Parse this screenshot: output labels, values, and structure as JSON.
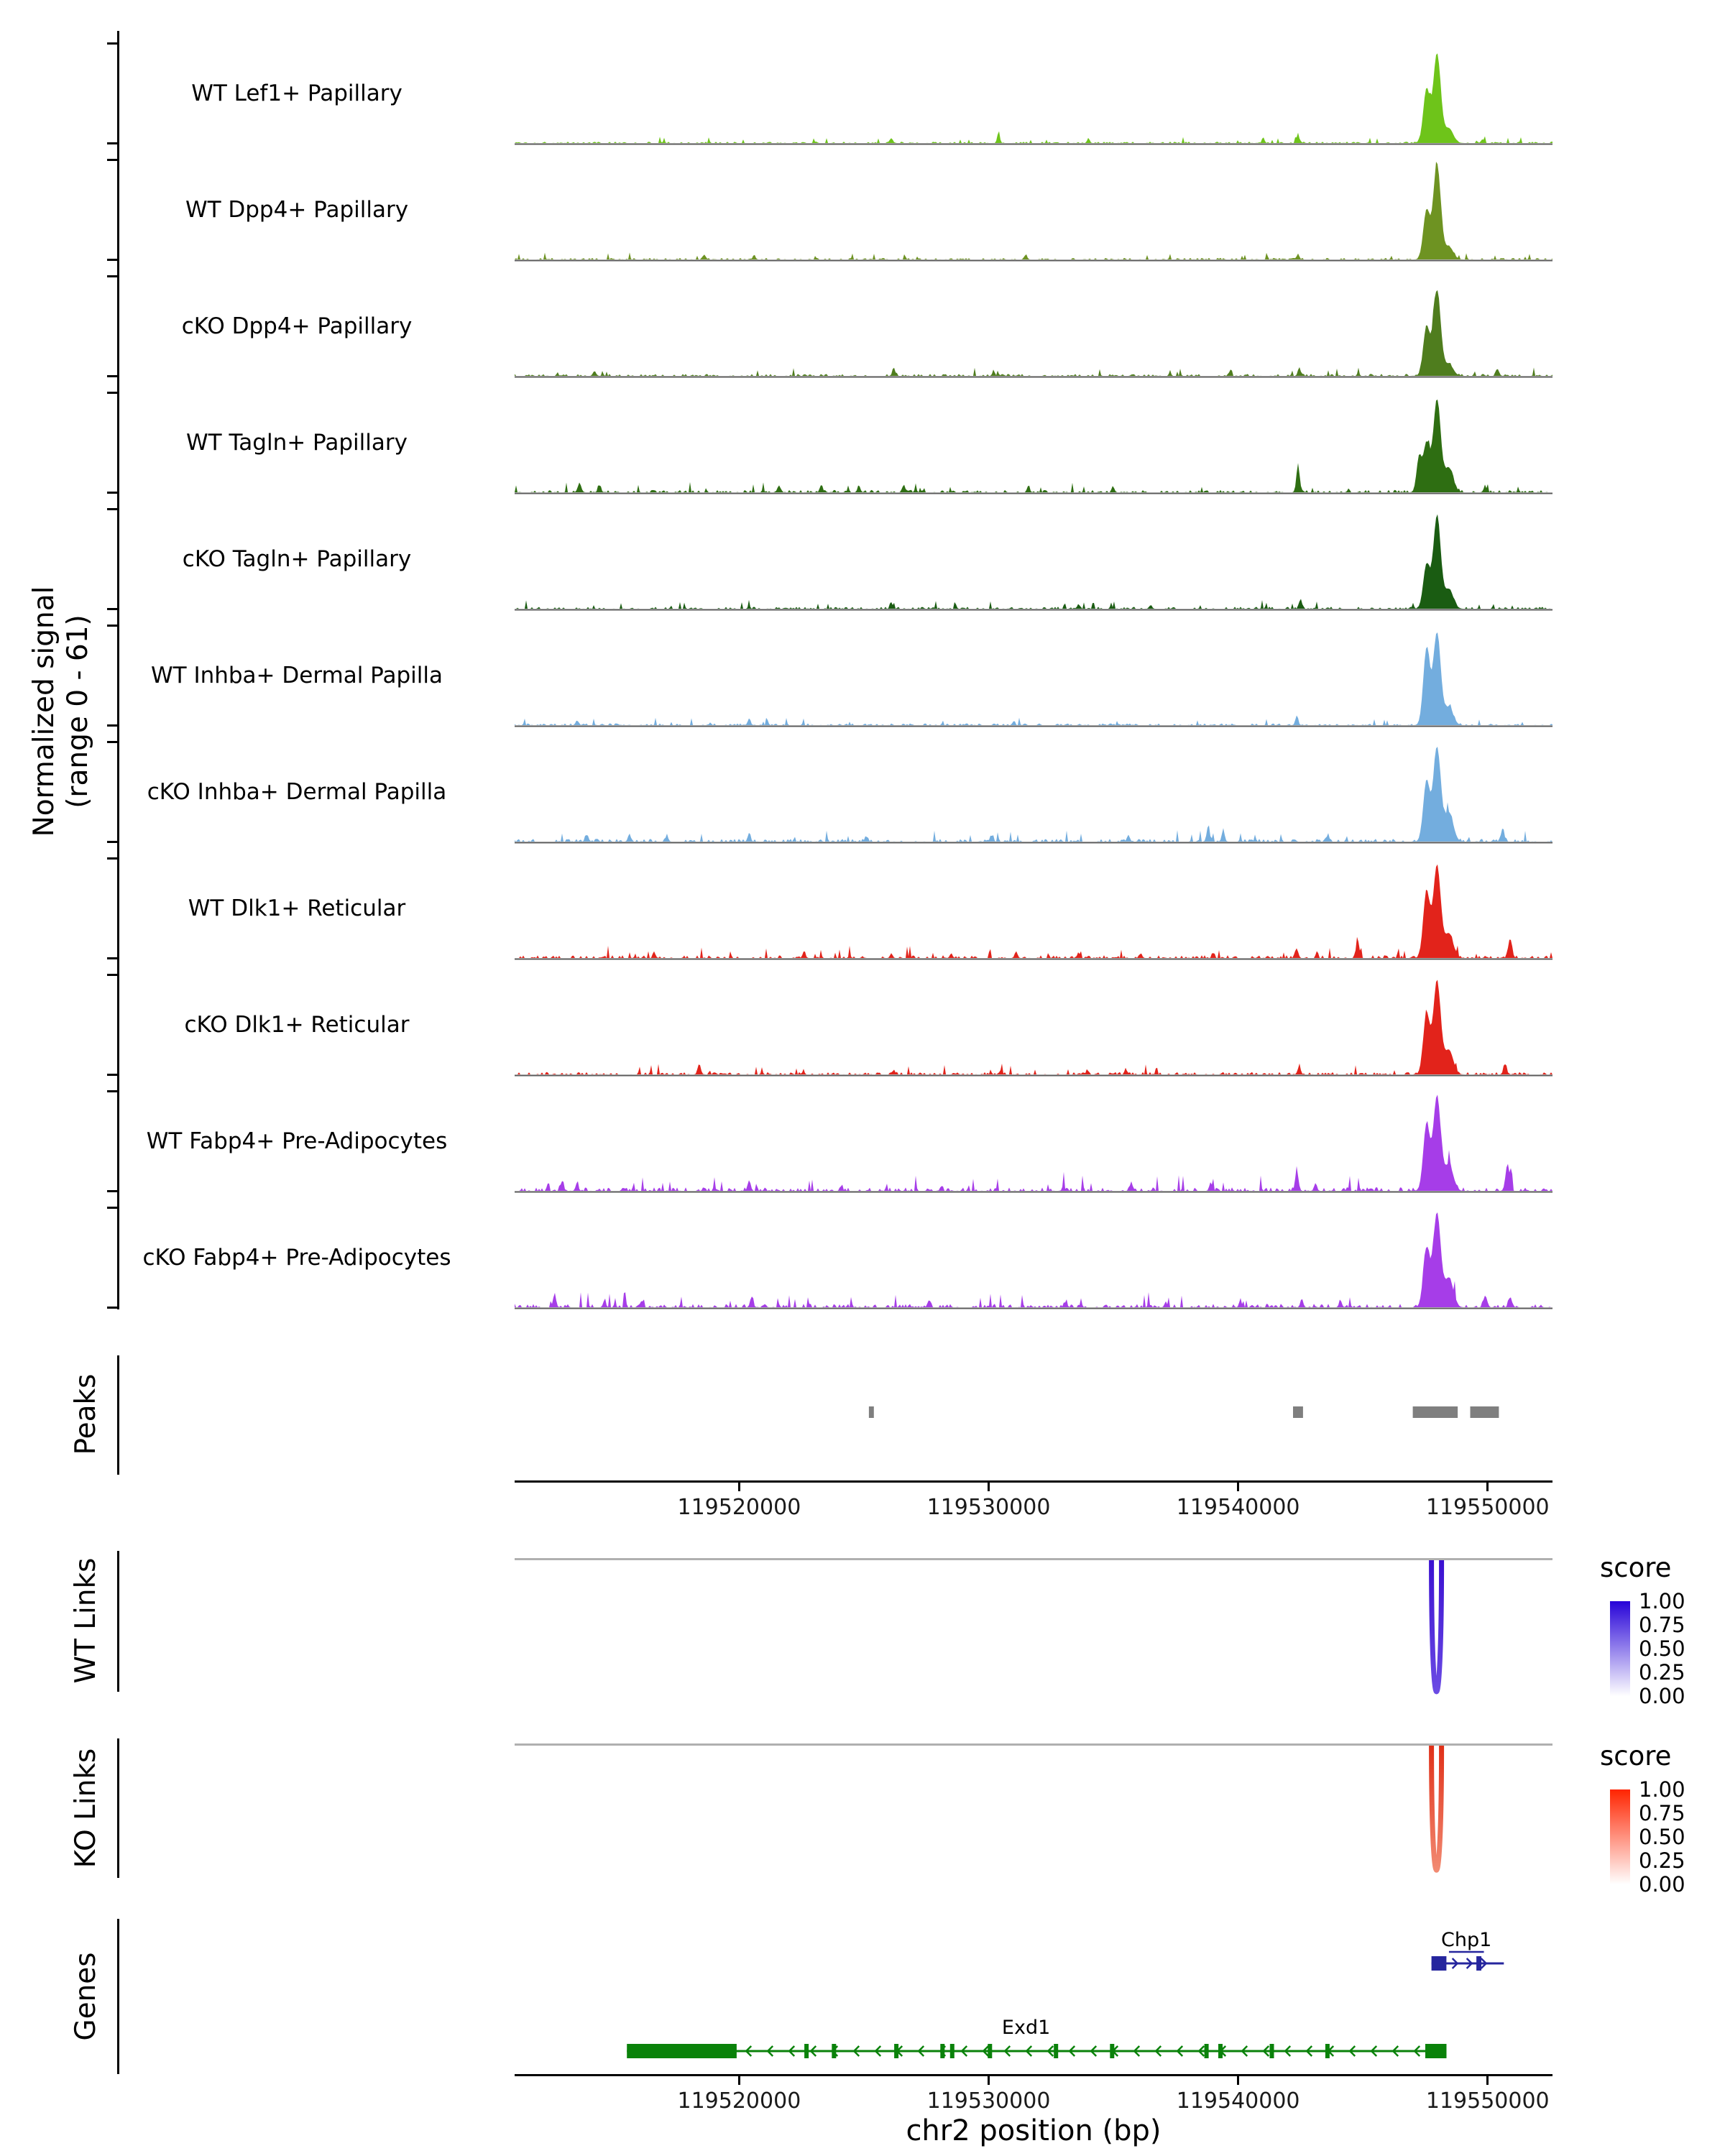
{
  "chart_data": {
    "type": "area",
    "title": "",
    "xlabel": "chr2 position (bp)",
    "ylabel": "Normalized signal (range 0 - 61)",
    "ylabel_lines": [
      "Normalized signal",
      "(range 0 - 61)"
    ],
    "region": {
      "chrom": "chr2",
      "start": 119511000,
      "end": 119552600
    },
    "x_ticks": [
      119520000,
      119530000,
      119540000,
      119550000
    ],
    "signal_range": "0 - 61",
    "tracks": [
      {
        "label": "WT Lef1+ Papillary",
        "color": "#6EC41A",
        "noise": 0.018,
        "peaks": [
          [
            119547550,
            0.55,
            130
          ],
          [
            119547970,
            0.92,
            150
          ],
          [
            119548450,
            0.15,
            170
          ],
          [
            119526100,
            0.05,
            60
          ],
          [
            119530400,
            0.13,
            45
          ],
          [
            119534000,
            0.05,
            50
          ],
          [
            119541000,
            0.05,
            45
          ],
          [
            119542400,
            0.08,
            55
          ],
          [
            119549800,
            0.04,
            60
          ]
        ]
      },
      {
        "label": "WT Dpp4+ Papillary",
        "color": "#6E9322",
        "noise": 0.02,
        "peaks": [
          [
            119547550,
            0.5,
            130
          ],
          [
            119547970,
            0.98,
            150
          ],
          [
            119548450,
            0.13,
            170
          ],
          [
            119518600,
            0.05,
            60
          ],
          [
            119520600,
            0.05,
            50
          ],
          [
            119531500,
            0.04,
            50
          ],
          [
            119542400,
            0.06,
            50
          ]
        ]
      },
      {
        "label": "cKO Dpp4+ Papillary",
        "color": "#4F7D1E",
        "noise": 0.025,
        "peaks": [
          [
            119547550,
            0.5,
            130
          ],
          [
            119547970,
            0.88,
            150
          ],
          [
            119548450,
            0.12,
            170
          ],
          [
            119514200,
            0.05,
            60
          ],
          [
            119526200,
            0.07,
            60
          ],
          [
            119530200,
            0.05,
            50
          ],
          [
            119542450,
            0.09,
            55
          ],
          [
            119550400,
            0.07,
            60
          ]
        ]
      },
      {
        "label": "WT Tagln+ Papillary",
        "color": "#2E6E12",
        "noise": 0.03,
        "peaks": [
          [
            119547250,
            0.35,
            100
          ],
          [
            119547550,
            0.5,
            130
          ],
          [
            119547970,
            0.95,
            150
          ],
          [
            119548450,
            0.25,
            170
          ],
          [
            119513600,
            0.09,
            70
          ],
          [
            119514400,
            0.07,
            60
          ],
          [
            119521600,
            0.06,
            55
          ],
          [
            119523300,
            0.06,
            50
          ],
          [
            119524800,
            0.07,
            55
          ],
          [
            119526600,
            0.08,
            55
          ],
          [
            119531600,
            0.06,
            50
          ],
          [
            119535000,
            0.05,
            50
          ],
          [
            119542400,
            0.3,
            60
          ],
          [
            119549900,
            0.06,
            60
          ]
        ]
      },
      {
        "label": "cKO Tagln+ Papillary",
        "color": "#1A5C12",
        "noise": 0.025,
        "peaks": [
          [
            119547550,
            0.45,
            130
          ],
          [
            119547970,
            0.95,
            150
          ],
          [
            119548450,
            0.2,
            170
          ],
          [
            119526100,
            0.06,
            55
          ],
          [
            119533600,
            0.05,
            50
          ],
          [
            119536500,
            0.04,
            50
          ],
          [
            119542500,
            0.1,
            55
          ]
        ]
      },
      {
        "label": "WT Inhba+ Dermal Papilla",
        "color": "#73ADDE",
        "noise": 0.022,
        "peaks": [
          [
            119547550,
            0.78,
            130
          ],
          [
            119547970,
            0.95,
            150
          ],
          [
            119548450,
            0.18,
            170
          ],
          [
            119513500,
            0.05,
            55
          ],
          [
            119520400,
            0.07,
            55
          ],
          [
            119531000,
            0.04,
            50
          ],
          [
            119542350,
            0.1,
            55
          ]
        ]
      },
      {
        "label": "cKO Inhba+ Dermal Papilla",
        "color": "#73ADDE",
        "noise": 0.035,
        "peaks": [
          [
            119547550,
            0.62,
            130
          ],
          [
            119547970,
            0.97,
            150
          ],
          [
            119548450,
            0.3,
            170
          ],
          [
            119513900,
            0.07,
            60
          ],
          [
            119515600,
            0.08,
            55
          ],
          [
            119517100,
            0.06,
            55
          ],
          [
            119520400,
            0.09,
            55
          ],
          [
            119525100,
            0.05,
            50
          ],
          [
            119530100,
            0.07,
            50
          ],
          [
            119535600,
            0.07,
            55
          ],
          [
            119538800,
            0.16,
            60
          ],
          [
            119539400,
            0.12,
            55
          ],
          [
            119543600,
            0.07,
            55
          ],
          [
            119550600,
            0.12,
            70
          ]
        ]
      },
      {
        "label": "WT Dlk1+ Reticular",
        "color": "#E2231B",
        "noise": 0.035,
        "peaks": [
          [
            119547550,
            0.68,
            130
          ],
          [
            119547970,
            0.95,
            150
          ],
          [
            119548450,
            0.25,
            170
          ],
          [
            119516600,
            0.05,
            55
          ],
          [
            119522600,
            0.07,
            55
          ],
          [
            119526100,
            0.05,
            50
          ],
          [
            119528500,
            0.05,
            50
          ],
          [
            119531100,
            0.07,
            55
          ],
          [
            119533600,
            0.06,
            50
          ],
          [
            119536100,
            0.05,
            50
          ],
          [
            119539000,
            0.05,
            50
          ],
          [
            119542350,
            0.1,
            55
          ],
          [
            119544800,
            0.16,
            65
          ],
          [
            119550900,
            0.2,
            75
          ]
        ]
      },
      {
        "label": "cKO Dlk1+ Reticular",
        "color": "#E2231B",
        "noise": 0.03,
        "peaks": [
          [
            119547550,
            0.62,
            130
          ],
          [
            119547970,
            0.95,
            150
          ],
          [
            119548450,
            0.25,
            170
          ],
          [
            119518400,
            0.11,
            60
          ],
          [
            119526200,
            0.05,
            50
          ],
          [
            119530500,
            0.05,
            50
          ],
          [
            119535500,
            0.05,
            50
          ],
          [
            119542450,
            0.09,
            55
          ],
          [
            119550700,
            0.1,
            65
          ]
        ]
      },
      {
        "label": "WT Fabp4+ Pre-Adipocytes",
        "color": "#A63DE8",
        "noise": 0.045,
        "peaks": [
          [
            119547550,
            0.68,
            130
          ],
          [
            119547970,
            0.97,
            150
          ],
          [
            119548450,
            0.27,
            170
          ],
          [
            119512900,
            0.1,
            60
          ],
          [
            119513500,
            0.08,
            55
          ],
          [
            119520400,
            0.11,
            60
          ],
          [
            119524100,
            0.05,
            50
          ],
          [
            119528100,
            0.05,
            50
          ],
          [
            119533000,
            0.05,
            50
          ],
          [
            119535700,
            0.07,
            55
          ],
          [
            119538900,
            0.09,
            55
          ],
          [
            119542350,
            0.22,
            60
          ],
          [
            119543100,
            0.08,
            55
          ],
          [
            119550800,
            0.28,
            80
          ]
        ]
      },
      {
        "label": "cKO Fabp4+ Pre-Adipocytes",
        "color": "#A63DE8",
        "noise": 0.045,
        "peaks": [
          [
            119547550,
            0.6,
            130
          ],
          [
            119547970,
            0.97,
            150
          ],
          [
            119548450,
            0.3,
            170
          ],
          [
            119512600,
            0.13,
            60
          ],
          [
            119514600,
            0.07,
            55
          ],
          [
            119516100,
            0.07,
            55
          ],
          [
            119520500,
            0.11,
            60
          ],
          [
            119527600,
            0.07,
            55
          ],
          [
            119533100,
            0.06,
            50
          ],
          [
            119537100,
            0.06,
            50
          ],
          [
            119540100,
            0.06,
            50
          ],
          [
            119542550,
            0.09,
            55
          ],
          [
            119544100,
            0.07,
            55
          ],
          [
            119549900,
            0.12,
            70
          ],
          [
            119550900,
            0.1,
            65
          ]
        ]
      }
    ],
    "peaks_track": {
      "label": "Peaks",
      "color": "#7F7F7F",
      "intervals": [
        [
          119525200,
          119525400
        ],
        [
          119542200,
          119542600
        ],
        [
          119547000,
          119548800
        ],
        [
          119549300,
          119550450
        ]
      ]
    },
    "links": [
      {
        "label": "WT Links",
        "position": 119547950,
        "score": 1.0,
        "color_top": "#3A10D1",
        "color_bottom": "#6B4BE4",
        "legend": {
          "title": "score",
          "ticks": [
            "1.00",
            "0.75",
            "0.50",
            "0.25",
            "0.00"
          ],
          "gradient_top": "#2703D8",
          "gradient_bottom": "#FFFFFF"
        }
      },
      {
        "label": "KO Links",
        "position": 119547950,
        "score": 1.0,
        "color_top": "#E03018",
        "color_bottom": "#F28A72",
        "legend": {
          "title": "score",
          "ticks": [
            "1.00",
            "0.75",
            "0.50",
            "0.25",
            "0.00"
          ],
          "gradient_top": "#FF2400",
          "gradient_bottom": "#FFFFFF"
        }
      }
    ],
    "genes_track": {
      "label": "Genes",
      "genes": [
        {
          "name": "Chp1",
          "color": "#26269E",
          "strand": "+",
          "start": 119547750,
          "end": 119550650,
          "exons": [
            [
              119547750,
              119548350
            ],
            [
              119549550,
              119549750
            ]
          ],
          "small_exons": [],
          "second_line": [
            119548450,
            119549850
          ],
          "label_pos": 119549150
        },
        {
          "name": "Exd1",
          "color": "#0A820A",
          "strand": "-",
          "start": 119515500,
          "end": 119548350,
          "exons": [
            [
              119515500,
              119519900
            ],
            [
              119547500,
              119548350
            ]
          ],
          "small_exons": [
            119522700,
            119523800,
            119526300,
            119528150,
            119528540,
            119530050,
            119532700,
            119534950,
            119538730,
            119539290,
            119541350,
            119543580
          ],
          "second_line": null,
          "label_pos": 119531500
        }
      ]
    }
  }
}
